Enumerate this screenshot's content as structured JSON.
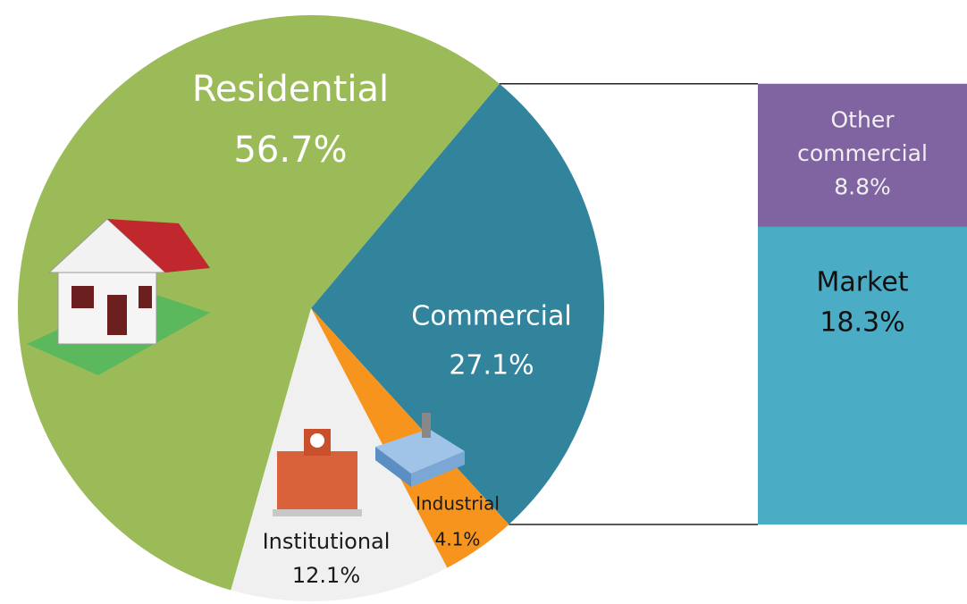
{
  "chart_data": [
    {
      "type": "pie",
      "categories": [
        "Commercial",
        "Industrial",
        "Institutional",
        "Residential"
      ],
      "values": [
        27.1,
        4.1,
        12.1,
        56.7
      ],
      "value_labels": [
        "27.1%",
        "4.1%",
        "12.1%",
        "56.7%"
      ],
      "colors": [
        "#31849b",
        "#f7941d",
        "#f0f0f0",
        "#9bbb59"
      ]
    },
    {
      "type": "bar",
      "categories": [
        "Other commercial",
        "Market"
      ],
      "values": [
        8.8,
        18.3
      ],
      "value_labels": [
        "8.8%",
        "18.3%"
      ],
      "colors": [
        "#8064a2",
        "#4bacc6"
      ]
    }
  ]
}
